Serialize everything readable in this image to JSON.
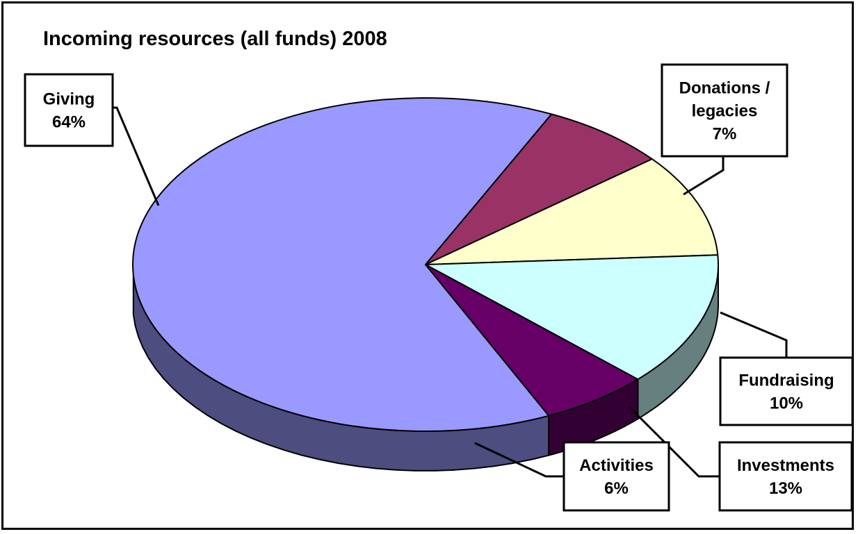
{
  "chart_data": {
    "type": "pie",
    "title": "Incoming resources (all funds) 2008",
    "slices": [
      {
        "label": "Giving",
        "value": 64,
        "value_label": "64%",
        "color": "#9999FF",
        "side_color": "#4D4D80",
        "lines": [
          "Giving",
          "64%"
        ]
      },
      {
        "label": "Donations / legacies",
        "value": 7,
        "value_label": "7%",
        "color": "#993366",
        "side_color": "#4D1A33",
        "lines": [
          "Donations /",
          "legacies",
          "7%"
        ]
      },
      {
        "label": "Fundraising",
        "value": 10,
        "value_label": "10%",
        "color": "#FFFFCC",
        "side_color": "#808066",
        "lines": [
          "Fundraising",
          "10%"
        ]
      },
      {
        "label": "Investments",
        "value": 13,
        "value_label": "13%",
        "color": "#CCFFFF",
        "side_color": "#668080",
        "lines": [
          "Investments",
          "13%"
        ]
      },
      {
        "label": "Activities",
        "value": 6,
        "value_label": "6%",
        "color": "#660066",
        "side_color": "#330033",
        "lines": [
          "Activities",
          "6%"
        ]
      }
    ],
    "legend": "none",
    "style": "3d-pie"
  }
}
